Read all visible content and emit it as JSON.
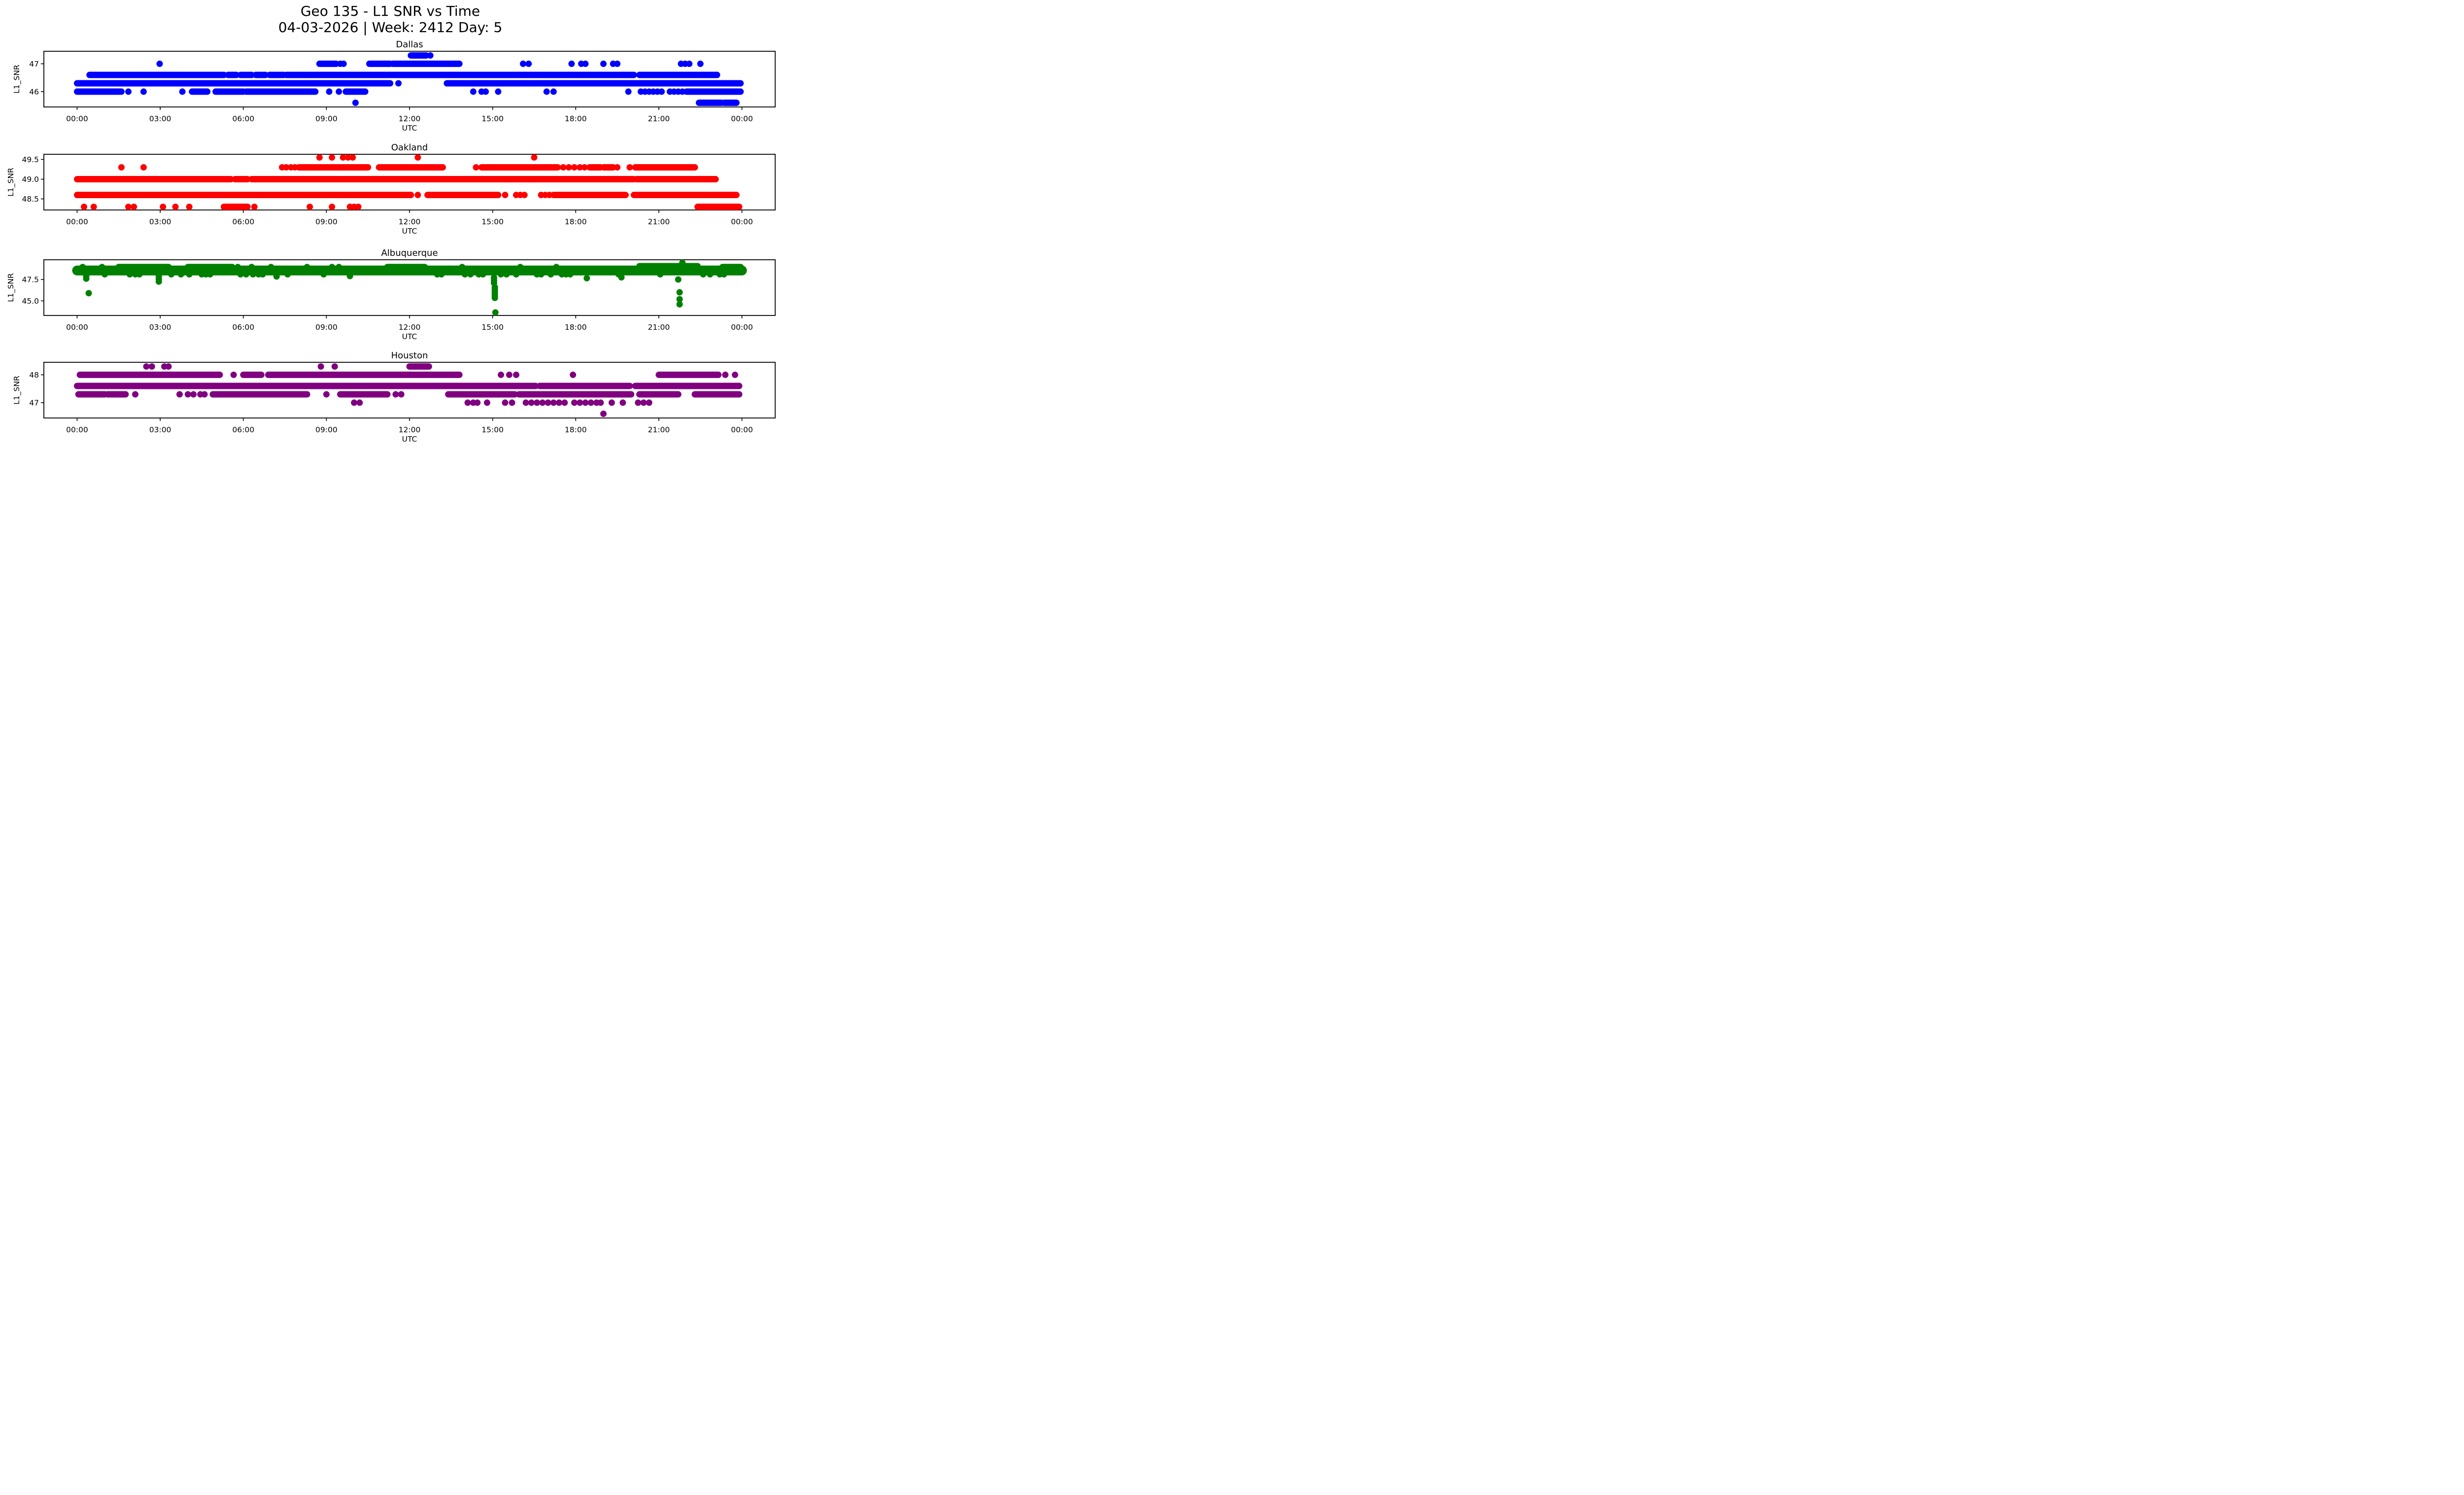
{
  "title": {
    "line1": "Geo 135 - L1 SNR vs Time",
    "line2": "04-03-2026 | Week: 2412 Day: 5"
  },
  "figure": {
    "background": "#ffffff",
    "text_color": "#000000"
  },
  "chart_data": [
    {
      "type": "scatter",
      "title": "Dallas",
      "color": "#0000ff",
      "xlabel": "UTC",
      "ylabel": "L1_SNR",
      "xlim": [
        -1.2,
        25.2
      ],
      "ylim": [
        45.45,
        47.45
      ],
      "xticks": {
        "hours": [
          0,
          3,
          6,
          9,
          12,
          15,
          18,
          21,
          24
        ],
        "labels": [
          "00:00",
          "03:00",
          "06:00",
          "09:00",
          "12:00",
          "15:00",
          "18:00",
          "21:00",
          "00:00"
        ]
      },
      "yticks": {
        "values": [
          46,
          47
        ],
        "labels": [
          "46",
          "47"
        ]
      },
      "bands": [
        {
          "y": 47.3,
          "segments": [
            [
              12.05,
              12.6
            ]
          ],
          "dots": [
            12.75
          ]
        },
        {
          "y": 47.0,
          "segments": [
            [
              8.75,
              9.35
            ],
            [
              10.55,
              11.3
            ],
            [
              11.4,
              13.8
            ]
          ],
          "dots": [
            2.98,
            9.5,
            9.62,
            16.1,
            16.3,
            17.85,
            18.2,
            18.35,
            19.0,
            19.35,
            19.5,
            21.8,
            21.95,
            22.1,
            22.5
          ]
        },
        {
          "y": 46.6,
          "segments": [
            [
              0.45,
              5.3
            ],
            [
              5.45,
              5.75
            ],
            [
              5.9,
              6.3
            ],
            [
              6.45,
              6.8
            ],
            [
              6.95,
              7.45
            ],
            [
              7.55,
              20.1
            ],
            [
              20.3,
              23.1
            ]
          ],
          "dots": []
        },
        {
          "y": 46.3,
          "segments": [
            [
              0.0,
              11.3
            ],
            [
              13.35,
              23.95
            ]
          ],
          "dots": [
            11.6
          ]
        },
        {
          "y": 46.0,
          "segments": [
            [
              0.0,
              1.6
            ],
            [
              4.15,
              4.7
            ],
            [
              5.0,
              6.0
            ],
            [
              6.1,
              8.6
            ],
            [
              9.7,
              10.4
            ],
            [
              22.0,
              23.95
            ]
          ],
          "dots": [
            1.85,
            2.4,
            3.8,
            9.1,
            9.45,
            14.3,
            14.6,
            14.75,
            15.2,
            16.95,
            17.2,
            19.9,
            20.35,
            20.5,
            20.65,
            20.8,
            20.95,
            21.1,
            21.4,
            21.55,
            21.7,
            21.85
          ]
        },
        {
          "y": 45.6,
          "segments": [
            [
              22.45,
              23.25
            ],
            [
              23.35,
              23.8
            ]
          ],
          "dots": [
            10.05
          ]
        }
      ],
      "points": []
    },
    {
      "type": "scatter",
      "title": "Oakland",
      "color": "#ff0000",
      "xlabel": "UTC",
      "ylabel": "L1_SNR",
      "xlim": [
        -1.2,
        25.2
      ],
      "ylim": [
        48.22,
        49.63
      ],
      "xticks": {
        "hours": [
          0,
          3,
          6,
          9,
          12,
          15,
          18,
          21,
          24
        ],
        "labels": [
          "00:00",
          "03:00",
          "06:00",
          "09:00",
          "12:00",
          "15:00",
          "18:00",
          "21:00",
          "00:00"
        ]
      },
      "yticks": {
        "values": [
          48.5,
          49.0,
          49.5
        ],
        "labels": [
          "48.5",
          "49.0",
          "49.5"
        ]
      },
      "bands": [
        {
          "y": 49.55,
          "segments": [],
          "dots": [
            8.75,
            9.2,
            9.6,
            9.78,
            9.95,
            12.3,
            16.5
          ]
        },
        {
          "y": 49.3,
          "segments": [
            [
              8.0,
              10.5
            ],
            [
              10.9,
              13.2
            ],
            [
              14.6,
              17.35
            ],
            [
              18.5,
              18.9
            ],
            [
              19.0,
              19.35
            ],
            [
              20.15,
              22.3
            ]
          ],
          "dots": [
            1.6,
            2.4,
            7.4,
            7.55,
            7.72,
            7.86,
            14.4,
            17.55,
            17.75,
            17.95,
            18.15,
            18.32,
            19.5,
            19.95
          ]
        },
        {
          "y": 49.0,
          "segments": [
            [
              0.0,
              5.55
            ],
            [
              5.7,
              6.15
            ],
            [
              6.3,
              20.1
            ],
            [
              20.2,
              23.05
            ]
          ],
          "dots": []
        },
        {
          "y": 48.6,
          "segments": [
            [
              0.0,
              12.05
            ],
            [
              12.65,
              15.2
            ],
            [
              17.2,
              19.8
            ],
            [
              20.1,
              23.8
            ]
          ],
          "dots": [
            12.3,
            15.45,
            15.85,
            16.0,
            16.15,
            16.75,
            16.9,
            17.05
          ]
        },
        {
          "y": 48.3,
          "segments": [
            [
              5.3,
              6.15
            ],
            [
              22.4,
              23.9
            ]
          ],
          "dots": [
            0.25,
            0.6,
            1.85,
            2.05,
            3.1,
            3.55,
            4.05,
            6.4,
            8.4,
            9.2,
            9.85,
            10.0,
            10.15
          ]
        }
      ],
      "points": []
    },
    {
      "type": "scatter",
      "title": "Albuquerque",
      "color": "#008000",
      "xlabel": "UTC",
      "ylabel": "L1_SNR",
      "xlim": [
        -1.2,
        25.2
      ],
      "ylim": [
        43.3,
        49.8
      ],
      "xticks": {
        "hours": [
          0,
          3,
          6,
          9,
          12,
          15,
          18,
          21,
          24
        ],
        "labels": [
          "00:00",
          "03:00",
          "06:00",
          "09:00",
          "12:00",
          "15:00",
          "18:00",
          "21:00",
          "00:00"
        ]
      },
      "yticks": {
        "values": [
          45.0,
          47.5
        ],
        "labels": [
          "45.0",
          "47.5"
        ]
      },
      "bands": [
        {
          "y": 48.55,
          "segments": [
            [
              0.0,
              24.0
            ]
          ],
          "dots": [],
          "thick": true
        },
        {
          "y": 48.95,
          "segments": [
            [
              1.5,
              3.3
            ],
            [
              4.0,
              5.6
            ],
            [
              11.2,
              12.55
            ],
            [
              23.3,
              23.95
            ]
          ],
          "dots": [
            0.2,
            0.9,
            5.8,
            6.3,
            7.0,
            8.3,
            9.2,
            9.45,
            13.9,
            16.0,
            17.3
          ]
        },
        {
          "y": 49.05,
          "segments": [
            [
              20.3,
              22.4
            ]
          ],
          "dots": []
        },
        {
          "y": 48.1,
          "segments": [],
          "dots": [
            1.0,
            1.9,
            2.1,
            2.25,
            3.4,
            3.75,
            4.05,
            4.5,
            4.65,
            4.8,
            5.9,
            6.1,
            6.35,
            6.55,
            6.7,
            7.6,
            8.9,
            13.0,
            13.15,
            14.0,
            14.2,
            14.5,
            14.65,
            15.3,
            15.5,
            15.85,
            16.6,
            16.75,
            17.1,
            17.5,
            17.65,
            17.8,
            19.55,
            21.05,
            22.6,
            22.85,
            23.2,
            23.35
          ]
        }
      ],
      "points": [
        [
          0.33,
          47.9
        ],
        [
          0.33,
          47.6
        ],
        [
          0.42,
          45.9
        ],
        [
          2.95,
          47.85
        ],
        [
          2.95,
          47.55
        ],
        [
          2.95,
          47.25
        ],
        [
          7.2,
          47.85
        ],
        [
          9.85,
          47.9
        ],
        [
          15.05,
          47.7
        ],
        [
          15.05,
          47.4
        ],
        [
          15.05,
          47.1
        ],
        [
          15.08,
          46.6
        ],
        [
          15.08,
          46.35
        ],
        [
          15.08,
          46.1
        ],
        [
          15.08,
          45.85
        ],
        [
          15.08,
          45.6
        ],
        [
          15.08,
          45.35
        ],
        [
          15.1,
          43.65
        ],
        [
          18.4,
          47.65
        ],
        [
          19.65,
          47.75
        ],
        [
          21.7,
          47.5
        ],
        [
          21.75,
          46.0
        ],
        [
          21.75,
          45.2
        ],
        [
          21.75,
          44.6
        ],
        [
          21.85,
          49.45
        ]
      ]
    },
    {
      "type": "scatter",
      "title": "Houston",
      "color": "#800080",
      "xlabel": "UTC",
      "ylabel": "L1_SNR",
      "xlim": [
        -1.2,
        25.2
      ],
      "ylim": [
        46.45,
        48.45
      ],
      "xticks": {
        "hours": [
          0,
          3,
          6,
          9,
          12,
          15,
          18,
          21,
          24
        ],
        "labels": [
          "00:00",
          "03:00",
          "06:00",
          "09:00",
          "12:00",
          "15:00",
          "18:00",
          "21:00",
          "00:00"
        ]
      },
      "yticks": {
        "values": [
          47,
          48
        ],
        "labels": [
          "47",
          "48"
        ]
      },
      "bands": [
        {
          "y": 48.3,
          "segments": [
            [
              12.0,
              12.7
            ]
          ],
          "dots": [
            2.5,
            2.7,
            3.15,
            3.3,
            8.8,
            9.3
          ]
        },
        {
          "y": 48.0,
          "segments": [
            [
              0.1,
              5.15
            ],
            [
              6.0,
              6.65
            ],
            [
              6.9,
              13.8
            ],
            [
              21.0,
              23.15
            ]
          ],
          "dots": [
            5.65,
            15.3,
            15.6,
            15.85,
            17.9,
            23.4,
            23.75
          ]
        },
        {
          "y": 47.6,
          "segments": [
            [
              0.0,
              16.55
            ],
            [
              16.7,
              19.95
            ],
            [
              20.15,
              23.9
            ]
          ],
          "dots": []
        },
        {
          "y": 47.3,
          "segments": [
            [
              0.05,
              1.0
            ],
            [
              1.1,
              1.75
            ],
            [
              4.9,
              8.3
            ],
            [
              9.5,
              11.2
            ],
            [
              13.4,
              15.8
            ],
            [
              15.95,
              20.0
            ],
            [
              20.3,
              21.7
            ],
            [
              22.3,
              23.9
            ]
          ],
          "dots": [
            2.1,
            3.7,
            4.0,
            4.2,
            4.45,
            4.6,
            9.0,
            11.5,
            11.7
          ]
        },
        {
          "y": 47.0,
          "segments": [],
          "dots": [
            10.0,
            10.2,
            14.1,
            14.3,
            14.45,
            14.8,
            15.45,
            15.7,
            16.2,
            16.4,
            16.6,
            16.8,
            17.0,
            17.2,
            17.4,
            17.6,
            17.95,
            18.15,
            18.35,
            18.55,
            18.75,
            18.9,
            19.3,
            19.7,
            20.25,
            20.45,
            20.65
          ]
        },
        {
          "y": 46.6,
          "segments": [],
          "dots": [
            19.0
          ]
        }
      ],
      "points": []
    }
  ]
}
